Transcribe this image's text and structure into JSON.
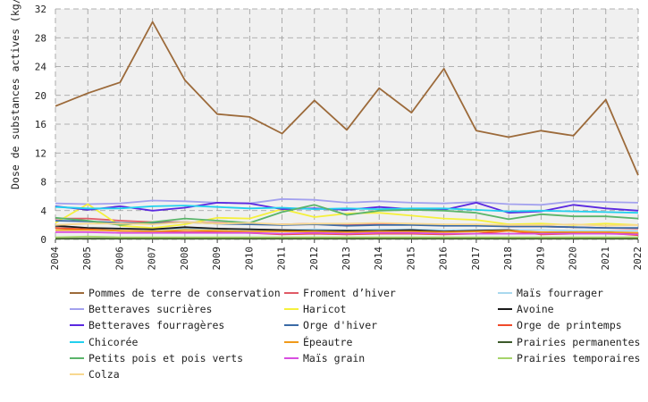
{
  "chart_data": {
    "type": "line",
    "ylabel": "Dose de substances actives (kg/ha)",
    "xlabel": "",
    "ylim": [
      0,
      32
    ],
    "yticks": [
      0,
      4,
      8,
      12,
      16,
      20,
      24,
      28,
      32
    ],
    "grid": true,
    "legend_position": "bottom",
    "x": [
      "2004",
      "2005",
      "2006",
      "2007",
      "2008",
      "2009",
      "2010",
      "2011",
      "2012",
      "2013",
      "2014",
      "2015",
      "2016",
      "2017",
      "2018",
      "2019",
      "2020",
      "2021",
      "2022"
    ],
    "series": [
      {
        "name": "Pommes de terre de conservation",
        "color": "#9c6a3a",
        "values": [
          18.5,
          20.3,
          21.8,
          30.2,
          22.1,
          17.4,
          17.0,
          14.7,
          19.3,
          15.2,
          21.0,
          17.6,
          23.7,
          15.1,
          14.2,
          15.1,
          14.4,
          19.4,
          8.9
        ]
      },
      {
        "name": "Froment d’hiver",
        "color": "#e05a66",
        "values": [
          2.9,
          2.9,
          2.6,
          2.4,
          2.4,
          2.3,
          2.2,
          2.1,
          2.2,
          2.0,
          2.1,
          2.1,
          2.0,
          2.0,
          1.8,
          1.8,
          1.7,
          1.6,
          1.5
        ]
      },
      {
        "name": "Maïs fourrager",
        "color": "#a9d8ee",
        "values": [
          1.7,
          1.6,
          1.5,
          1.4,
          1.5,
          1.4,
          1.4,
          1.3,
          1.4,
          1.3,
          1.4,
          1.4,
          1.3,
          1.3,
          1.3,
          1.3,
          1.2,
          1.2,
          1.2
        ]
      },
      {
        "name": "Betteraves sucrières",
        "color": "#a3a1ee",
        "values": [
          5.0,
          4.9,
          5.0,
          5.4,
          5.3,
          5.1,
          5.0,
          5.6,
          5.5,
          5.1,
          5.3,
          5.1,
          5.0,
          5.2,
          4.9,
          4.8,
          5.3,
          5.2,
          5.1
        ]
      },
      {
        "name": "Haricot",
        "color": "#f5f03c",
        "values": [
          2.3,
          4.9,
          1.9,
          1.6,
          2.1,
          3.0,
          2.9,
          4.2,
          3.1,
          3.6,
          3.7,
          3.3,
          2.9,
          2.7,
          2.1,
          2.2,
          2.0,
          2.2,
          2.0
        ]
      },
      {
        "name": "Avoine",
        "color": "#1a1a1a",
        "values": [
          1.9,
          1.6,
          1.5,
          1.4,
          1.7,
          1.5,
          1.4,
          1.3,
          1.2,
          1.2,
          1.2,
          1.3,
          1.1,
          1.2,
          1.3,
          0.8,
          0.9,
          1.0,
          0.8
        ]
      },
      {
        "name": "Betteraves fourragères",
        "color": "#5a28e0",
        "values": [
          4.6,
          4.1,
          4.6,
          4.0,
          4.4,
          5.1,
          5.0,
          4.2,
          4.3,
          4.1,
          4.5,
          4.2,
          4.1,
          5.1,
          3.7,
          3.9,
          4.8,
          4.3,
          4.0
        ]
      },
      {
        "name": "Orge d'hiver",
        "color": "#3a6aa6",
        "values": [
          2.6,
          2.5,
          2.3,
          2.2,
          2.4,
          2.2,
          2.1,
          2.0,
          2.1,
          1.9,
          2.0,
          2.0,
          1.9,
          1.9,
          1.8,
          1.8,
          1.7,
          1.6,
          1.6
        ]
      },
      {
        "name": "Orge de printemps",
        "color": "#f04a2a",
        "values": [
          1.6,
          1.4,
          1.2,
          1.1,
          1.0,
          1.0,
          0.9,
          0.7,
          0.8,
          0.7,
          0.8,
          0.8,
          0.7,
          0.8,
          1.2,
          0.7,
          0.8,
          0.9,
          0.6
        ]
      },
      {
        "name": "Chicorée",
        "color": "#22d0ee",
        "values": [
          4.5,
          4.3,
          4.3,
          4.6,
          4.7,
          4.5,
          4.3,
          4.4,
          4.2,
          4.3,
          4.2,
          4.3,
          4.3,
          4.1,
          3.9,
          4.0,
          3.9,
          3.8,
          3.7
        ]
      },
      {
        "name": "Épeautre",
        "color": "#f09a1a",
        "values": [
          1.3,
          1.3,
          1.2,
          1.1,
          1.3,
          1.2,
          1.1,
          1.1,
          1.1,
          1.0,
          1.1,
          1.1,
          1.0,
          1.1,
          1.2,
          1.0,
          1.0,
          1.0,
          0.9
        ]
      },
      {
        "name": "Prairies permanentes",
        "color": "#3c5a2a",
        "values": [
          0.1,
          0.1,
          0.1,
          0.1,
          0.1,
          0.1,
          0.1,
          0.1,
          0.1,
          0.1,
          0.1,
          0.1,
          0.1,
          0.1,
          0.1,
          0.1,
          0.1,
          0.1,
          0.1
        ]
      },
      {
        "name": "Petits pois et pois verts",
        "color": "#5ab46a",
        "values": [
          3.0,
          2.6,
          2.0,
          2.4,
          2.9,
          2.6,
          2.3,
          3.8,
          4.8,
          3.4,
          4.0,
          4.1,
          4.0,
          3.7,
          2.8,
          3.5,
          3.2,
          3.2,
          2.9
        ]
      },
      {
        "name": "Maïs grain",
        "color": "#d84ee0",
        "values": [
          1.0,
          1.0,
          0.9,
          0.9,
          0.9,
          0.9,
          0.9,
          0.8,
          0.9,
          0.8,
          0.9,
          0.9,
          0.8,
          0.8,
          0.8,
          0.8,
          0.8,
          0.8,
          0.7
        ]
      },
      {
        "name": "Prairies temporaires",
        "color": "#a6d46a",
        "values": [
          0.3,
          0.4,
          0.3,
          0.3,
          0.3,
          0.3,
          0.3,
          0.3,
          0.3,
          0.3,
          0.3,
          0.3,
          0.3,
          0.3,
          0.3,
          0.3,
          0.3,
          0.3,
          0.3
        ]
      },
      {
        "name": "Colza",
        "color": "#f8d890",
        "values": [
          2.0,
          2.2,
          2.2,
          2.1,
          2.4,
          2.2,
          2.3,
          2.1,
          2.2,
          2.2,
          2.3,
          2.2,
          2.1,
          2.1,
          2.0,
          2.0,
          2.1,
          1.9,
          2.0
        ]
      }
    ]
  }
}
